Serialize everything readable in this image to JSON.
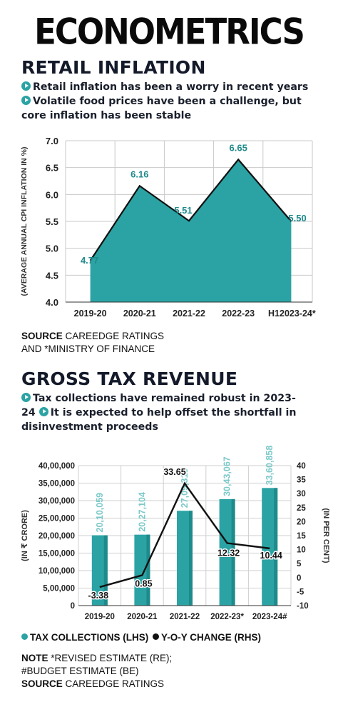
{
  "page": {
    "title": "ECONOMETRICS",
    "colors": {
      "teal": "#2ba3a4",
      "teal_dark": "#1f8a8b",
      "line": "#111111"
    }
  },
  "section1": {
    "title": "RETAIL INFLATION",
    "bullet1": "Retail inflation has been a worry in recent years",
    "bullet2": "Volatile food prices have been a challenge, but core inflation has been stable",
    "source_label": "SOURCE",
    "source_text": "CAREEDGE RATINGS",
    "source_line2": "AND *MINISTRY OF FINANCE"
  },
  "section2": {
    "title": "GROSS TAX REVENUE",
    "bullet1": "Tax collections have remained robust in 2023-24",
    "bullet2": "It is expected to help offset the shortfall in disinvestment proceeds",
    "legend_bars": "TAX COLLECTIONS (LHS)",
    "legend_line": "Y-O-Y CHANGE (RHS)",
    "note_label": "NOTE",
    "note_text": "*REVISED ESTIMATE (RE);",
    "note_line2": "#BUDGET ESTIMATE (BE)",
    "source_label": "SOURCE",
    "source_text": "CAREEDGE RATINGS"
  },
  "chart_data": [
    {
      "type": "area",
      "categories": [
        "2019-20",
        "2020-21",
        "2021-22",
        "2022-23",
        "H12023-24*"
      ],
      "values": [
        4.77,
        6.16,
        5.51,
        6.65,
        5.5
      ],
      "value_labels": [
        "4.77",
        "6.16",
        "5.51",
        "6.65",
        "5.50"
      ],
      "ylabel": "(AVERAGE ANNUAL CPI INFLATION IN %)",
      "ylim": [
        4.0,
        7.0
      ],
      "yticks": [
        "4.0",
        "4.5",
        "5.0",
        "5.5",
        "6.0",
        "6.5",
        "7.0"
      ],
      "grid": true
    },
    {
      "type": "bar",
      "categories": [
        "2019-20",
        "2020-21",
        "2021-22",
        "2022-23*",
        "2023-24#"
      ],
      "series": [
        {
          "name": "TAX COLLECTIONS (LHS)",
          "type": "bar",
          "axis": "left",
          "values": [
            2010059,
            2027104,
            2709315,
            3043067,
            3360858
          ],
          "labels": [
            "20,10,059",
            "20,27,104",
            "27,09,315",
            "30,43,067",
            "33,60,858"
          ]
        },
        {
          "name": "Y-O-Y CHANGE (RHS)",
          "type": "line",
          "axis": "right",
          "values": [
            -3.38,
            0.85,
            33.65,
            12.32,
            10.44
          ],
          "labels": [
            "-3.38",
            "0.85",
            "33.65",
            "12.32",
            "10.44"
          ]
        }
      ],
      "ylabel_left": "(IN ₹ CRORE)",
      "ylabel_right": "(IN PER CENT)",
      "ylim_left": [
        0,
        4000000
      ],
      "ylim_right": [
        -10,
        40
      ],
      "yticks_left": [
        "0",
        "5,00,000",
        "10,00,000",
        "15,00,000",
        "20,00,000",
        "25,00,000",
        "30,00,000",
        "35,00,000",
        "40,00,000"
      ],
      "yticks_right": [
        "-10",
        "-5",
        "0",
        "5",
        "10",
        "15",
        "20",
        "25",
        "30",
        "35",
        "40"
      ],
      "grid": true
    }
  ]
}
